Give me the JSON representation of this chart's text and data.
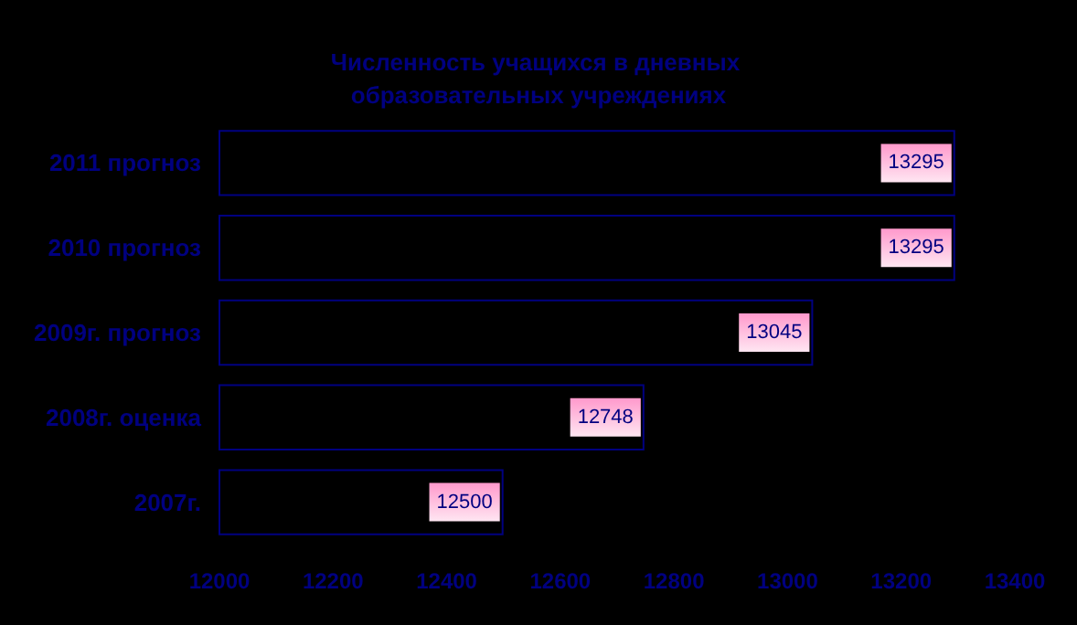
{
  "chart_data": {
    "type": "bar",
    "orientation": "horizontal",
    "title": "Численность учащихся в дневных образовательных учреждениях",
    "categories": [
      "2011 прогноз",
      "2010 прогноз",
      "2009г. прогноз",
      "2008г. оценка",
      "2007г."
    ],
    "values": [
      13295,
      13295,
      13045,
      12748,
      12500
    ],
    "color": "#000080",
    "xlim": [
      12000,
      13400
    ],
    "xticks": [
      12000,
      12200,
      12400,
      12600,
      12800,
      13000,
      13200,
      13400
    ],
    "grid": false,
    "data_labels": true
  }
}
